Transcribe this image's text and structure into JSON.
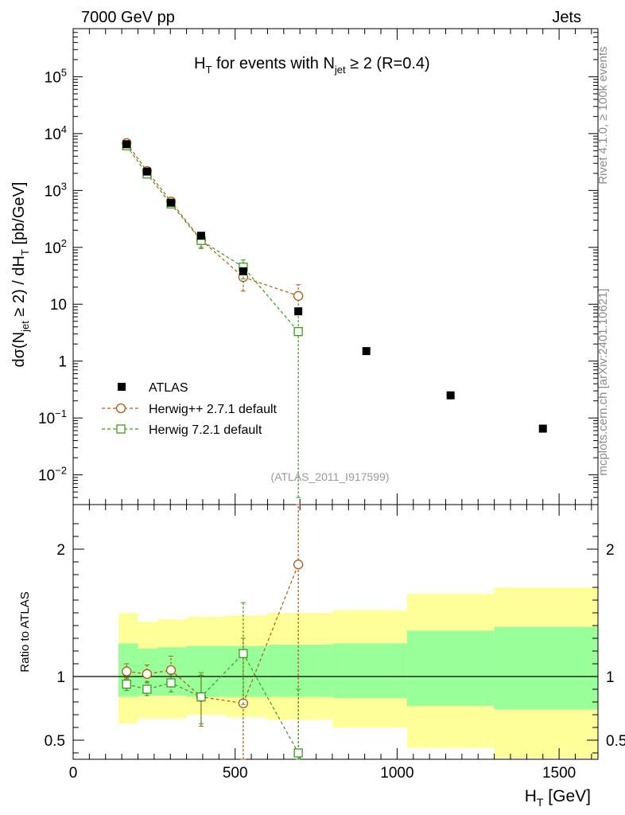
{
  "header": {
    "left": "7000 GeV pp",
    "right": "Jets",
    "side_top": "Rivet 4.1.0, ≥ 100k events",
    "side_bottom": "mcplots.cern.ch [arXiv:2401.10621]"
  },
  "colors": {
    "data": "#000000",
    "herwigpp": "#b05a10",
    "herwig7": "#3c9a1e",
    "band_inner": "#99ff99",
    "band_outer": "#ffff99"
  },
  "chart_data": [
    {
      "type": "scatter",
      "panel": "main",
      "title": "H_T for events with N_jet ≥ 2 (R=0.4)",
      "ylabel": "dσ(N_jet ≥ 2) / dH_T [pb/GeV]",
      "yscale": "log",
      "ylim": [
        0.003,
        700000
      ],
      "xlim": [
        0,
        1620
      ],
      "yticks": [
        "10^-2",
        "10^-1",
        "1",
        "10",
        "10^2",
        "10^3",
        "10^4",
        "10^5"
      ],
      "watermark": "(ATLAS_2011_I917599)",
      "legend": [
        "ATLAS",
        "Herwig++ 2.7.1 default",
        "Herwig 7.2.1 default"
      ],
      "series": [
        {
          "name": "ATLAS",
          "marker": "filled-square",
          "x": [
            165,
            228,
            302,
            395,
            525,
            695,
            905,
            1165,
            1450
          ],
          "y": [
            6500,
            2150,
            610,
            160,
            38,
            7.5,
            1.5,
            0.25,
            0.065
          ]
        },
        {
          "name": "Herwig++ 2.7.1 default",
          "marker": "open-circle",
          "line": "dashed",
          "x": [
            165,
            228,
            302,
            395,
            525,
            695
          ],
          "y": [
            6800,
            2200,
            640,
            135,
            30,
            14
          ],
          "ylow": [
            6300,
            2000,
            560,
            100,
            17,
            8
          ],
          "yhigh": [
            7300,
            2400,
            720,
            175,
            45,
            22
          ]
        },
        {
          "name": "Herwig 7.2.1 default",
          "marker": "open-square",
          "line": "dashed",
          "x": [
            165,
            228,
            302,
            395,
            525,
            695
          ],
          "y": [
            6100,
            1950,
            580,
            132,
            45,
            3.3
          ],
          "ylow": [
            5700,
            1800,
            520,
            95,
            28,
            0.004
          ],
          "yhigh": [
            6500,
            2100,
            650,
            170,
            60,
            8
          ]
        }
      ]
    },
    {
      "type": "scatter",
      "panel": "ratio",
      "ylabel": "Ratio to ATLAS",
      "xlabel": "H_T [GeV]",
      "ylim": [
        0.35,
        2.35
      ],
      "xlim": [
        0,
        1620
      ],
      "xticks": [
        "0",
        "500",
        "1000",
        "1500"
      ],
      "yticks": [
        "0.5",
        "1",
        "2"
      ],
      "reference": 1,
      "bands": {
        "edges": [
          140,
          200,
          260,
          350,
          470,
          600,
          800,
          1030,
          1300,
          1620
        ],
        "inner_low": [
          0.84,
          0.85,
          0.85,
          0.84,
          0.84,
          0.84,
          0.83,
          0.77,
          0.74
        ],
        "inner_high": [
          1.26,
          1.22,
          1.23,
          1.24,
          1.24,
          1.25,
          1.26,
          1.36,
          1.39
        ],
        "outer_low": [
          0.63,
          0.67,
          0.67,
          0.7,
          0.68,
          0.66,
          0.6,
          0.44,
          0.36
        ],
        "outer_high": [
          1.5,
          1.43,
          1.45,
          1.47,
          1.48,
          1.5,
          1.52,
          1.65,
          1.7
        ]
      },
      "series": [
        {
          "name": "Herwig++ 2.7.1 default",
          "x": [
            165,
            228,
            302,
            395,
            525,
            695
          ],
          "y": [
            1.04,
            1.02,
            1.05,
            0.84,
            0.79,
            1.88
          ],
          "ylow": [
            0.98,
            0.95,
            0.94,
            0.61,
            0.3,
            0.3
          ],
          "yhigh": [
            1.1,
            1.09,
            1.16,
            1.01,
            1.3,
            3.0
          ]
        },
        {
          "name": "Herwig 7.2.1 default",
          "x": [
            165,
            228,
            302,
            395,
            525,
            695
          ],
          "y": [
            0.94,
            0.9,
            0.95,
            0.84,
            1.18,
            0.4
          ],
          "ylow": [
            0.89,
            0.85,
            0.88,
            0.63,
            0.78,
            0.3
          ],
          "yhigh": [
            0.99,
            0.96,
            1.02,
            1.03,
            1.58,
            0.9
          ]
        }
      ]
    }
  ]
}
